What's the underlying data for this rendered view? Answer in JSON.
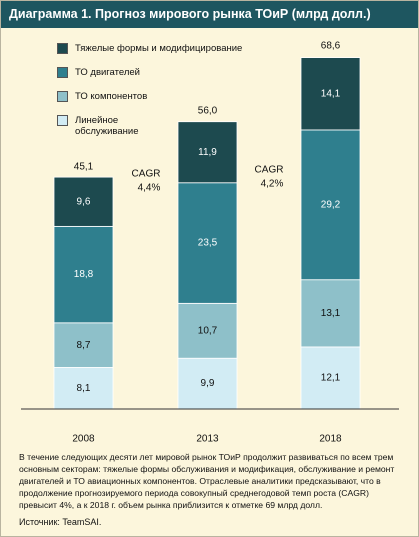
{
  "chart_data": {
    "type": "stacked-bar",
    "title": "Диаграмма 1. Прогноз мирового рынка ТОиР (млрд долл.)",
    "categories": [
      "2008",
      "2013",
      "2018"
    ],
    "series": [
      {
        "name": "Линейное обслуживание",
        "color": "#d2ecf4",
        "label_color": "#111111",
        "values": [
          8.1,
          9.9,
          12.1
        ],
        "value_labels": [
          "8,1",
          "9,9",
          "12,1"
        ]
      },
      {
        "name": "ТО компонентов",
        "color": "#8ec0c9",
        "label_color": "#111111",
        "values": [
          8.7,
          10.7,
          13.1
        ],
        "value_labels": [
          "8,7",
          "10,7",
          "13,1"
        ]
      },
      {
        "name": "ТО двигателей",
        "color": "#2f7f8e",
        "label_color": "#ffffff",
        "values": [
          18.8,
          23.5,
          29.2
        ],
        "value_labels": [
          "18,8",
          "23,5",
          "29,2"
        ]
      },
      {
        "name": "Тяжелые формы и модифицирование",
        "color": "#1d4a4f",
        "label_color": "#ffffff",
        "values": [
          9.6,
          11.9,
          14.1
        ],
        "value_labels": [
          "9,6",
          "11,9",
          "14,1"
        ]
      }
    ],
    "totals": [
      45.1,
      56.0,
      68.6
    ],
    "total_labels": [
      "45,1",
      "56,0",
      "68,6"
    ],
    "annotations": [
      [
        "CAGR",
        "4,4%"
      ],
      [
        "CAGR",
        "4,2%"
      ]
    ],
    "caption": "В течение следующих десяти лет мировой рынок ТОиР продолжит развиваться по всем трем основным секторам: тяжелые формы обслуживания и модификация, обслуживание и ремонт двигателей и ТО авиационных компонентов. Отраслевые аналитики предсказывают, что в продолжение прогнозируемого периода совокупный среднегодовой темп роста (CAGR) превысит 4%, а к 2018 г. объем рынка приблизится к отметке 69 млрд долл.",
    "source": "Источник: TeamSAI."
  }
}
